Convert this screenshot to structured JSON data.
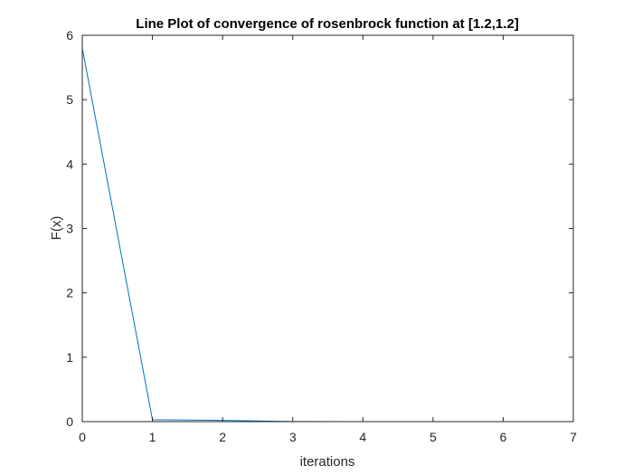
{
  "colors": {
    "series": "#0072BD",
    "axis": "#262626",
    "background": "#ffffff"
  },
  "chart_data": {
    "type": "line",
    "title": "Line Plot of convergence of rosenbrock function at [1.2,1.2]",
    "xlabel": "iterations",
    "ylabel": "F(x)",
    "xlim": [
      0,
      7
    ],
    "ylim": [
      0,
      6
    ],
    "xticks": [
      "0",
      "1",
      "2",
      "3",
      "4",
      "5",
      "6",
      "7"
    ],
    "yticks": [
      "0",
      "1",
      "2",
      "3",
      "4",
      "5",
      "6"
    ],
    "grid": false,
    "legend": false,
    "series": [
      {
        "x": [
          0,
          1,
          2,
          3,
          4,
          5,
          6,
          7
        ],
        "values": [
          5.8,
          0.03,
          0.02,
          0.001,
          0.0005,
          0.0002,
          0.0001,
          0.0
        ]
      }
    ]
  }
}
